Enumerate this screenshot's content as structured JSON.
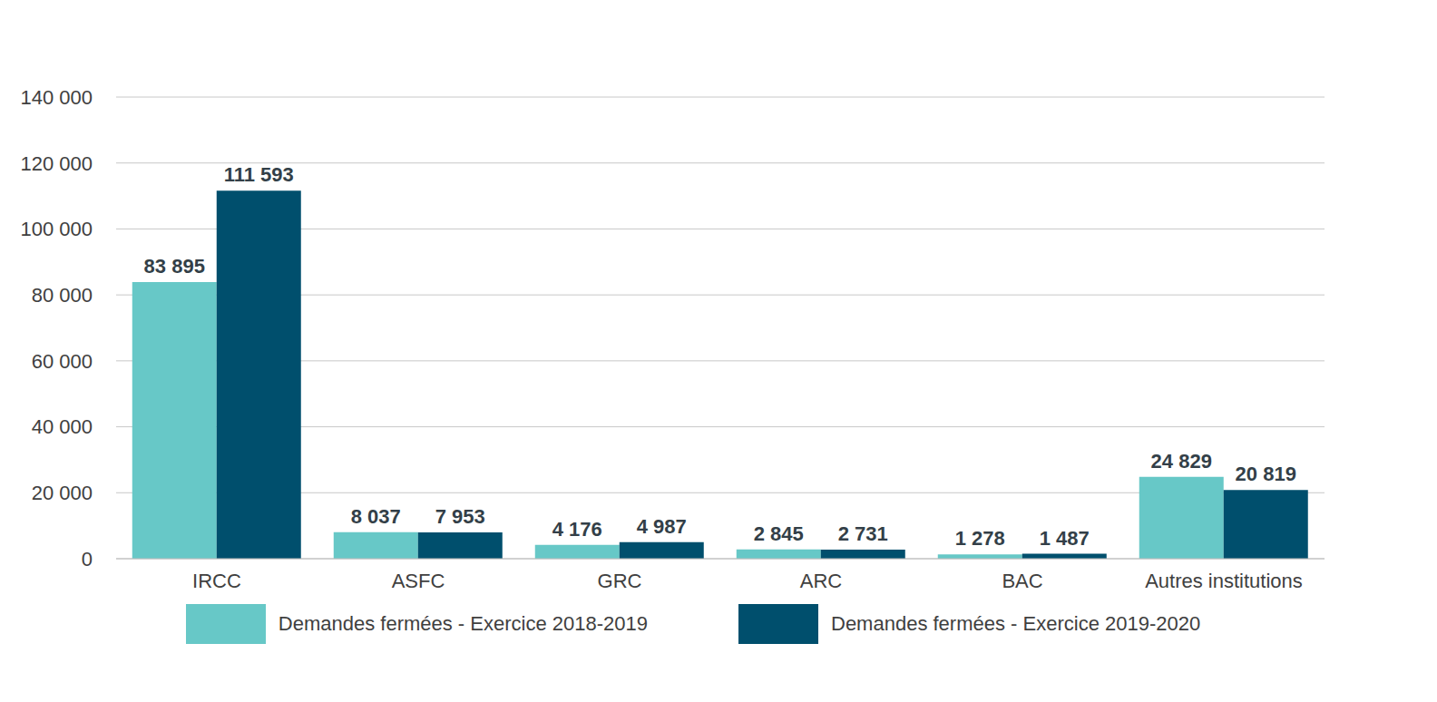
{
  "chart_data": {
    "type": "bar",
    "categories": [
      "IRCC",
      "ASFC",
      "GRC",
      "ARC",
      "BAC",
      "Autres institutions"
    ],
    "series": [
      {
        "name": "Demandes fermées - Exercice 2018-2019",
        "color": "#67c8c7",
        "values": [
          83895,
          8037,
          4176,
          2845,
          1278,
          24829
        ],
        "value_labels": [
          "83 895",
          "8 037",
          "4 176",
          "2 845",
          "1 278",
          "24 829"
        ]
      },
      {
        "name": "Demandes fermées - Exercice 2019-2020",
        "color": "#004f6d",
        "values": [
          111593,
          7953,
          4987,
          2731,
          1487,
          20819
        ],
        "value_labels": [
          "111 593",
          "7 953",
          "4 987",
          "2 731",
          "1 487",
          "20 819"
        ]
      }
    ],
    "ylim": [
      0,
      140000
    ],
    "yticks": [
      0,
      {
        "value": 20000,
        "label": "20 000"
      },
      {
        "value": 40000,
        "label": "40 000"
      },
      {
        "value": 60000,
        "label": "60 000"
      },
      {
        "value": 80000,
        "label": "80 000"
      },
      {
        "value": 100000,
        "label": "100 000"
      },
      {
        "value": 120000,
        "label": "120 000"
      },
      {
        "value": 140000,
        "label": "140 000"
      }
    ],
    "grid": true,
    "data_labels": true
  }
}
